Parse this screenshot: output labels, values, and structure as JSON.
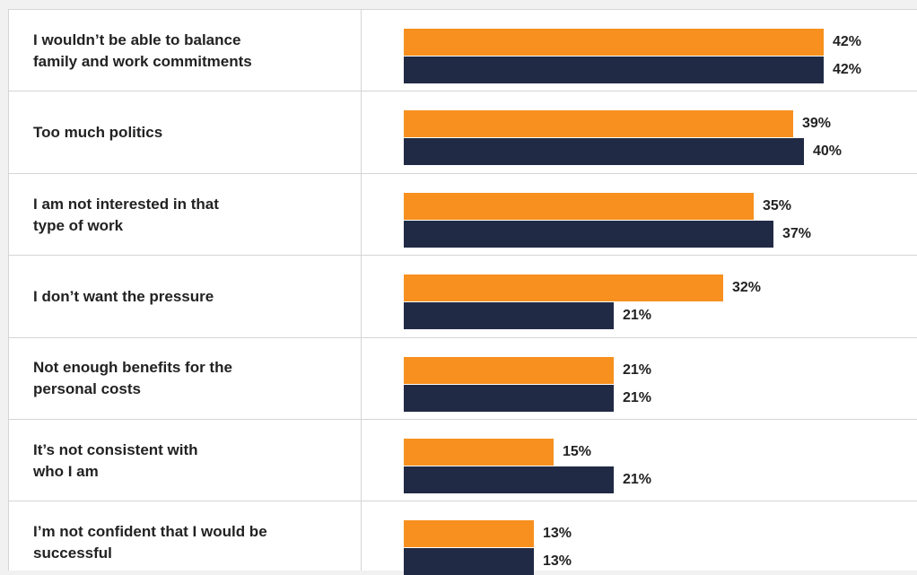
{
  "chart_data": {
    "type": "bar",
    "orientation": "horizontal",
    "categories": [
      "I wouldn’t be able to balance\nfamily and work commitments",
      "Too much politics",
      "I am not interested in that\ntype of work",
      "I don’t want the pressure",
      "Not enough benefits for the\npersonal costs",
      "It’s not consistent with\nwho I am",
      "I’m not confident that I would be\nsuccessful"
    ],
    "series": [
      {
        "color": "#f7901e",
        "values": [
          42,
          39,
          35,
          32,
          21,
          15,
          13
        ],
        "labels": [
          "42%",
          "39%",
          "35%",
          "32%",
          "21%",
          "15%",
          "13%"
        ]
      },
      {
        "color": "#212a45",
        "values": [
          42,
          40,
          37,
          21,
          21,
          21,
          13
        ],
        "labels": [
          "42%",
          "40%",
          "37%",
          "21%",
          "21%",
          "21%",
          "13%"
        ]
      }
    ],
    "xlim": [
      0,
      50
    ],
    "grid": false,
    "legend": "none"
  }
}
